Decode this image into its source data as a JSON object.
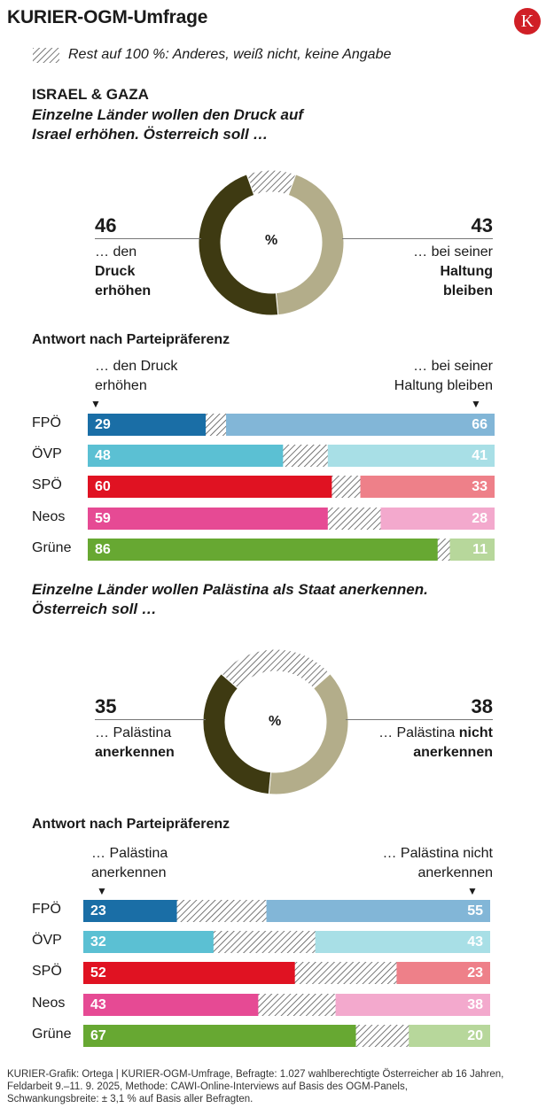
{
  "header": {
    "title": "KURIER-OGM-Umfrage",
    "logo_letter": "K"
  },
  "legend": {
    "text": "Rest auf 100 %: Anderes, weiß nicht, keine Angabe"
  },
  "colors": {
    "dark": "#3e3a12",
    "light": "#b3ad8a",
    "hatch": "#555555",
    "FPÖ": [
      "#1a6ea6",
      "#82b6d7"
    ],
    "ÖVP": [
      "#5bc0d3",
      "#a8dfe6"
    ],
    "SPÖ": [
      "#e01222",
      "#ee8089"
    ],
    "Neos": [
      "#e64a94",
      "#f3a9cd"
    ],
    "Grüne": [
      "#67a832",
      "#b7d79b"
    ]
  },
  "section1": {
    "topic": "ISRAEL & GAZA",
    "question_line1": "Einzelne Länder wollen den Druck auf",
    "question_line2": "Israel erhöhen. Österreich soll …",
    "left_value": "46",
    "left_line1": "… den",
    "left_line2": "Druck",
    "left_line3": "erhöhen",
    "right_value": "43",
    "right_line1": "… bei seiner",
    "right_line2": "Haltung",
    "right_line3": "bleiben",
    "percent_sign": "%",
    "party_heading": "Antwort nach Parteipräferenz",
    "col_left_line1": "… den Druck",
    "col_left_line2": "erhöhen",
    "col_right_line1": "… bei seiner",
    "col_right_line2": "Haltung bleiben"
  },
  "section2": {
    "question_line1": "Einzelne Länder wollen Palästina als Staat anerkennen.",
    "question_line2": "Österreich soll …",
    "left_value": "35",
    "left_line1": "… Palästina",
    "left_line2": "anerkennen",
    "right_value": "38",
    "right_line1": "… Palästina",
    "right_line1_bold": "nicht",
    "right_line2": "anerkennen",
    "percent_sign": "%",
    "party_heading": "Antwort nach Parteipräferenz",
    "col_left_line1": "… Palästina",
    "col_left_line2": "anerkennen",
    "col_right_line1": "… Palästina nicht",
    "col_right_line2": "anerkennen"
  },
  "chart_data": [
    {
      "type": "pie",
      "title": "Einzelne Länder wollen den Druck auf Israel erhöhen. Österreich soll …",
      "unit": "%",
      "labels": [
        "… den Druck erhöhen",
        "… bei seiner Haltung bleiben",
        "Rest"
      ],
      "values": [
        46,
        43,
        11
      ]
    },
    {
      "type": "bar",
      "title": "Antwort nach Parteipräferenz",
      "stacked": true,
      "orientation": "horizontal",
      "categories": [
        "FPÖ",
        "ÖVP",
        "SPÖ",
        "Neos",
        "Grüne"
      ],
      "series": [
        {
          "name": "… den Druck erhöhen",
          "values": [
            29,
            48,
            60,
            59,
            86
          ]
        },
        {
          "name": "… bei seiner Haltung bleiben",
          "values": [
            66,
            41,
            33,
            28,
            11
          ]
        }
      ]
    },
    {
      "type": "pie",
      "title": "Einzelne Länder wollen Palästina als Staat anerkennen. Österreich soll …",
      "unit": "%",
      "labels": [
        "… Palästina anerkennen",
        "… Palästina nicht anerkennen",
        "Rest"
      ],
      "values": [
        35,
        38,
        27
      ]
    },
    {
      "type": "bar",
      "title": "Antwort nach Parteipräferenz",
      "stacked": true,
      "orientation": "horizontal",
      "categories": [
        "FPÖ",
        "ÖVP",
        "SPÖ",
        "Neos",
        "Grüne"
      ],
      "series": [
        {
          "name": "… Palästina anerkennen",
          "values": [
            23,
            32,
            52,
            43,
            67
          ]
        },
        {
          "name": "… Palästina nicht anerkennen",
          "values": [
            55,
            43,
            23,
            38,
            20
          ]
        }
      ]
    }
  ],
  "footer": {
    "line1": "KURIER-Grafik: Ortega | KURIER-OGM-Umfrage, Befragte: 1.027 wahlberechtigte Österreicher ab 16 Jahren,",
    "line2": "Feldarbeit 9.–11. 9. 2025, Methode: CAWI-Online-Interviews auf Basis des OGM-Panels,",
    "line3": "Schwankungsbreite: ± 3,1 % auf Basis aller Befragten."
  }
}
